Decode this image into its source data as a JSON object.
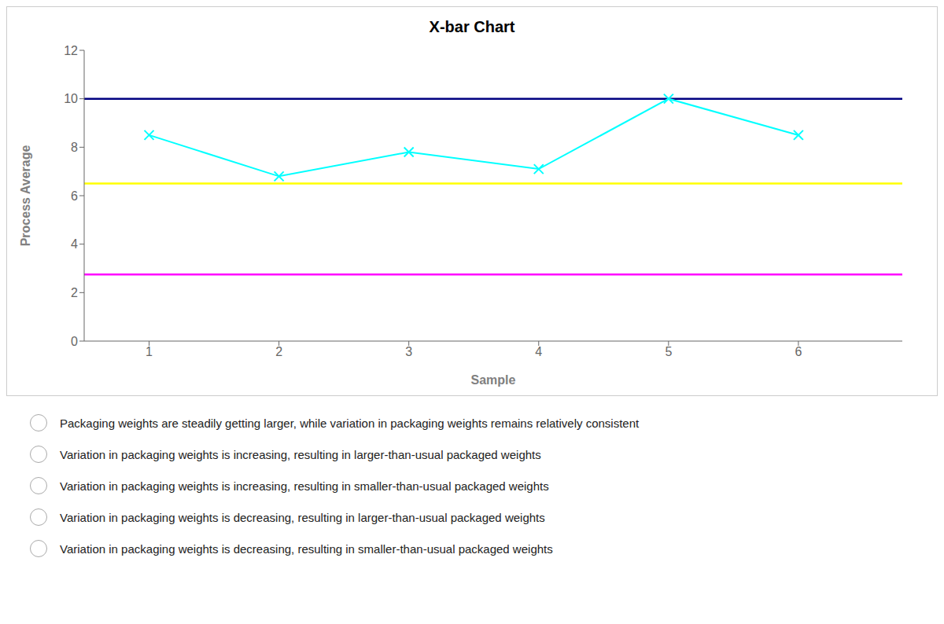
{
  "chart_data": {
    "type": "line",
    "title": "X-bar Chart",
    "x_label": "Sample",
    "y_label": "Process Average",
    "x": [
      1,
      2,
      3,
      4,
      5,
      6
    ],
    "values": [
      8.5,
      6.8,
      7.8,
      7.1,
      10.0,
      8.5
    ],
    "color": "#00FFFF",
    "marker": "x",
    "xlim": [
      0.5,
      6.8
    ],
    "xticks": [
      1,
      2,
      3,
      4,
      5,
      6
    ],
    "ylim": [
      0,
      12
    ],
    "yticks": [
      0,
      2,
      4,
      6,
      8,
      10,
      12
    ],
    "grid": false,
    "reference_lines": [
      {
        "value": 10.0,
        "color": "#000080"
      },
      {
        "value": 6.5,
        "color": "#FFFF00"
      },
      {
        "value": 2.75,
        "color": "#FF00FF"
      }
    ],
    "annotations": [
      "Packaging weights are steadily getting larger, while variation in packaging weights remains relatively consistent",
      "Variation in packaging weights is increasing, resulting in larger-than-usual packaged weights",
      "Variation in packaging weights is increasing, resulting in smaller-than-usual packaged weights",
      "Variation in packaging weights is decreasing, resulting in larger-than-usual packaged weights",
      "Variation in packaging weights is decreasing, resulting in smaller-than-usual packaged weights"
    ]
  }
}
